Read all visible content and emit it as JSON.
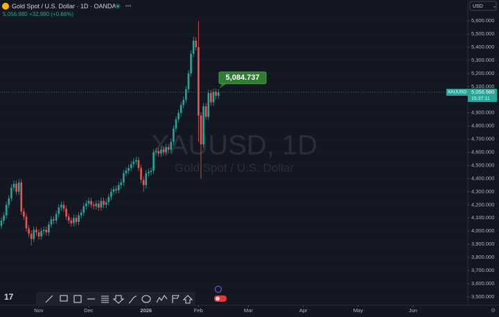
{
  "chart_data": {
    "type": "candlestick",
    "title": "Gold Spot / U.S. Dollar · 1D · OANDA",
    "price": "5,056.980",
    "change": "+32.980 (+0.66%)",
    "watermark": "XAUUSD, 1D",
    "watermark_subtitle": "Gold Spot / U.S. Dollar",
    "currency": "USD",
    "up_color": "#26a69a",
    "down_color": "#ef5350",
    "grid": true,
    "open": [
      4040,
      4080,
      4120,
      4200,
      4250,
      4330,
      4360,
      4300,
      4370,
      4150,
      4110,
      4020,
      3980,
      3940,
      4010,
      3990,
      3960,
      4000,
      4010,
      3990,
      4050,
      4090,
      4080,
      4130,
      4180,
      4200,
      4170,
      4110,
      4080,
      4060,
      4100,
      4070,
      4120,
      4140,
      4190,
      4210,
      4230,
      4200,
      4190,
      4210,
      4180,
      4230,
      4200,
      4220,
      4260,
      4300,
      4320,
      4310,
      4350,
      4370,
      4440,
      4460,
      4480,
      4510,
      4530,
      4540,
      4480,
      4390,
      4350,
      4440,
      4450,
      4460,
      4600,
      4610,
      4590,
      4620,
      4600,
      4640,
      4620,
      4680,
      4780,
      4850,
      4900,
      4960,
      5000,
      5080,
      5200,
      5350,
      5450,
      5400,
      4880,
      4660,
      4950,
      4870,
      5050,
      4980,
      5060,
      5030
    ],
    "high": [
      4105,
      4145,
      4225,
      4275,
      4355,
      4385,
      4385,
      4395,
      4395,
      4175,
      4135,
      4045,
      4005,
      4035,
      4035,
      4015,
      4025,
      4035,
      4035,
      4075,
      4115,
      4115,
      4155,
      4205,
      4225,
      4225,
      4195,
      4135,
      4105,
      4125,
      4125,
      4145,
      4165,
      4215,
      4235,
      4255,
      4255,
      4225,
      4235,
      4235,
      4255,
      4255,
      4245,
      4285,
      4325,
      4345,
      4345,
      4375,
      4395,
      4465,
      4485,
      4505,
      4535,
      4555,
      4565,
      4565,
      4505,
      4415,
      4465,
      4475,
      4485,
      4625,
      4635,
      4635,
      4645,
      4645,
      4665,
      4665,
      4705,
      4805,
      4875,
      4925,
      4985,
      5025,
      5105,
      5225,
      5375,
      5480,
      5475,
      5600,
      4905,
      4975,
      4975,
      5075,
      5075,
      5085,
      5085,
      5080
    ],
    "low": [
      4015,
      4055,
      4095,
      4175,
      4225,
      4305,
      4275,
      4275,
      4125,
      4085,
      3995,
      3955,
      3890,
      3915,
      3965,
      3935,
      3935,
      3975,
      3965,
      3965,
      4025,
      4055,
      4055,
      4105,
      4155,
      4145,
      4085,
      4055,
      4035,
      4035,
      4045,
      4045,
      4095,
      4115,
      4165,
      4185,
      4175,
      4165,
      4165,
      4155,
      4155,
      4175,
      4175,
      4195,
      4235,
      4275,
      4285,
      4285,
      4325,
      4345,
      4415,
      4435,
      4455,
      4485,
      4505,
      4455,
      4365,
      4300,
      4325,
      4415,
      4425,
      4435,
      4575,
      4565,
      4565,
      4575,
      4575,
      4595,
      4595,
      4655,
      4755,
      4825,
      4875,
      4935,
      4975,
      5055,
      5175,
      5325,
      5375,
      4680,
      4400,
      4635,
      4845,
      4845,
      4955,
      4955,
      5005,
      5005
    ],
    "close": [
      4080,
      4120,
      4200,
      4250,
      4330,
      4360,
      4300,
      4370,
      4150,
      4110,
      4020,
      3980,
      3940,
      4010,
      3990,
      3960,
      4000,
      4010,
      3990,
      4050,
      4090,
      4080,
      4130,
      4180,
      4200,
      4170,
      4110,
      4080,
      4060,
      4100,
      4070,
      4120,
      4140,
      4190,
      4210,
      4230,
      4200,
      4190,
      4210,
      4180,
      4230,
      4200,
      4220,
      4260,
      4300,
      4320,
      4310,
      4350,
      4370,
      4440,
      4460,
      4480,
      4510,
      4530,
      4540,
      4480,
      4390,
      4350,
      4440,
      4450,
      4460,
      4600,
      4610,
      4590,
      4620,
      4600,
      4640,
      4620,
      4680,
      4780,
      4850,
      4900,
      4960,
      5000,
      5080,
      5200,
      5350,
      5450,
      5400,
      4880,
      4660,
      4950,
      4870,
      5050,
      4980,
      5060,
      5030,
      5057
    ],
    "xlim": [
      -0.55,
      186.95
    ],
    "xticks": [
      {
        "value": 15,
        "label": "Nov"
      },
      {
        "value": 35,
        "label": "Dec"
      },
      {
        "value": 58,
        "label": "2026"
      },
      {
        "value": 79,
        "label": "Feb"
      },
      {
        "value": 99,
        "label": "Mar"
      },
      {
        "value": 121,
        "label": "Apr"
      },
      {
        "value": 143,
        "label": "May"
      },
      {
        "value": 165,
        "label": "Jun"
      }
    ],
    "ylim": [
      3436,
      5759
    ],
    "yticks": [
      {
        "value": 3500,
        "label": "3,500.000"
      },
      {
        "value": 3600,
        "label": "3,600.000"
      },
      {
        "value": 3700,
        "label": "3,700.000"
      },
      {
        "value": 3800,
        "label": "3,800.000"
      },
      {
        "value": 3900,
        "label": "3,900.000"
      },
      {
        "value": 4000,
        "label": "4,000.000"
      },
      {
        "value": 4100,
        "label": "4,100.000"
      },
      {
        "value": 4200,
        "label": "4,200.000"
      },
      {
        "value": 4300,
        "label": "4,300.000"
      },
      {
        "value": 4400,
        "label": "4,400.000"
      },
      {
        "value": 4500,
        "label": "4,500.000"
      },
      {
        "value": 4600,
        "label": "4,600.000"
      },
      {
        "value": 4700,
        "label": "4,700.000"
      },
      {
        "value": 4800,
        "label": "4,800.000"
      },
      {
        "value": 4900,
        "label": "4,900.000"
      },
      {
        "value": 5000,
        "label": "5,000.000"
      },
      {
        "value": 5100,
        "label": "5,100.000"
      },
      {
        "value": 5200,
        "label": "5,200.000"
      },
      {
        "value": 5300,
        "label": "5,300.000"
      },
      {
        "value": 5400,
        "label": "5,400.000"
      },
      {
        "value": 5500,
        "label": "5,500.000"
      },
      {
        "value": 5600,
        "label": "5,600.000"
      }
    ],
    "last_price": {
      "symbol": "XAUUSD",
      "value": 5056.98,
      "label": "5,056.980",
      "countdown": "15:37:11"
    },
    "annotation": {
      "value": 5084.737,
      "label": "5,084.737"
    }
  }
}
